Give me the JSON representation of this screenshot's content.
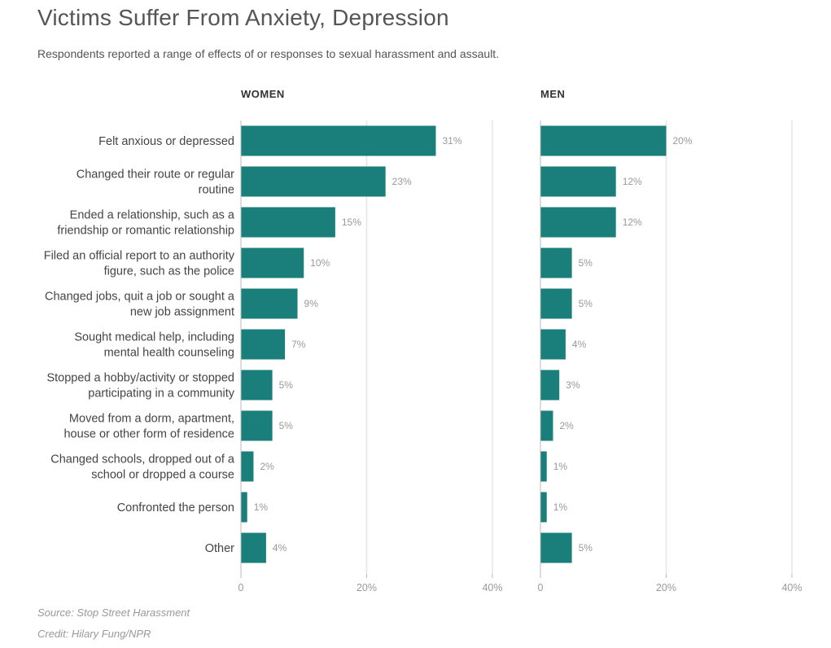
{
  "title": "Victims Suffer From Anxiety, Depression",
  "subtitle": "Respondents reported a range of effects of or responses to sexual harassment and assault.",
  "source": "Source: Stop Street Harassment",
  "credit": "Credit: Hilary Fung/NPR",
  "colors": {
    "bar": "#1a7f7a",
    "grid": "#e6e6e6",
    "value_label": "#999999",
    "category_label": "#444444",
    "panel_title": "#333333"
  },
  "chart_data": {
    "type": "bar",
    "orientation": "horizontal",
    "xlim": [
      0,
      40
    ],
    "x_ticks": [
      "0",
      "20%",
      "40%"
    ],
    "grid": true,
    "categories": [
      [
        "Felt anxious or depressed"
      ],
      [
        "Changed their route or regular",
        "routine"
      ],
      [
        "Ended a relationship, such as a",
        "friendship or romantic relationship"
      ],
      [
        "Filed an official report to an authority",
        "figure, such as the police"
      ],
      [
        "Changed jobs, quit a job or sought a",
        "new job assignment"
      ],
      [
        "Sought medical help, including",
        "mental health counseling"
      ],
      [
        "Stopped a hobby/activity or stopped",
        "participating in a community"
      ],
      [
        "Moved from a dorm, apartment,",
        "house or other form of residence"
      ],
      [
        "Changed schools, dropped out of a",
        "school or dropped a course"
      ],
      [
        "Confronted the person"
      ],
      [
        "Other"
      ]
    ],
    "series": [
      {
        "name": "WOMEN",
        "values": [
          31,
          23,
          15,
          10,
          9,
          7,
          5,
          5,
          2,
          1,
          4
        ],
        "labels": [
          "31%",
          "23%",
          "15%",
          "10%",
          "9%",
          "7%",
          "5%",
          "5%",
          "2%",
          "1%",
          "4%"
        ]
      },
      {
        "name": "MEN",
        "values": [
          20,
          12,
          12,
          5,
          5,
          4,
          3,
          2,
          1,
          1,
          5
        ],
        "labels": [
          "20%",
          "12%",
          "12%",
          "5%",
          "5%",
          "4%",
          "3%",
          "2%",
          "1%",
          "1%",
          "5%"
        ]
      }
    ]
  }
}
